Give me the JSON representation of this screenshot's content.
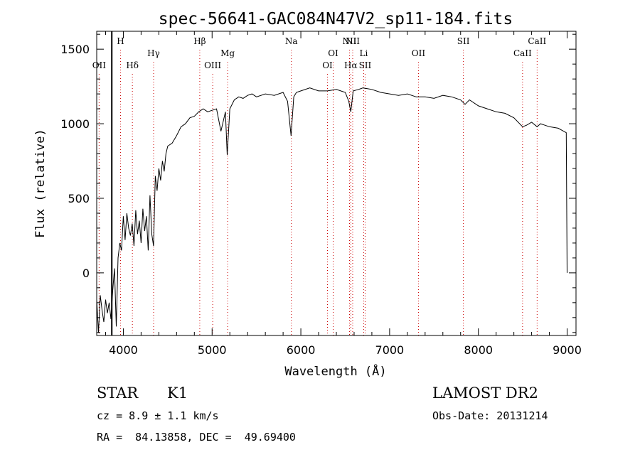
{
  "chart_data": {
    "type": "line",
    "title": "spec-56641-GAC084N47V2_sp11-184.fits",
    "xlabel": "Wavelength (Å)",
    "ylabel": "Flux (relative)",
    "xlim": [
      3700,
      9100
    ],
    "ylim": [
      -420,
      1620
    ],
    "x_ticks": [
      4000,
      5000,
      6000,
      7000,
      8000,
      9000
    ],
    "y_ticks": [
      0,
      500,
      1000,
      1500
    ],
    "grid": false,
    "series": [
      {
        "x": [
          3700,
          3720,
          3740,
          3760,
          3780,
          3800,
          3820,
          3840,
          3860,
          3880,
          3900,
          3920,
          3940,
          3960,
          3980,
          4000,
          4020,
          4040,
          4060,
          4080,
          4100,
          4120,
          4140,
          4160,
          4180,
          4200,
          4220,
          4240,
          4260,
          4280,
          4300,
          4320,
          4340,
          4360,
          4380,
          4400,
          4420,
          4440,
          4460,
          4480,
          4500,
          4550,
          4600,
          4650,
          4700,
          4750,
          4800,
          4850,
          4900,
          4950,
          5000,
          5050,
          5100,
          5150,
          5170,
          5200,
          5250,
          5300,
          5350,
          5400,
          5450,
          5500,
          5600,
          5700,
          5800,
          5850,
          5890,
          5920,
          5950,
          6000,
          6100,
          6200,
          6300,
          6400,
          6500,
          6540,
          6563,
          6590,
          6650,
          6700,
          6800,
          6900,
          7000,
          7100,
          7200,
          7300,
          7400,
          7500,
          7600,
          7700,
          7800,
          7850,
          7900,
          8000,
          8100,
          8200,
          8300,
          8400,
          8498,
          8542,
          8600,
          8662,
          8700,
          8800,
          8900,
          8960,
          8990,
          9000
        ],
        "y": [
          -180,
          -400,
          -150,
          -250,
          -330,
          -180,
          -270,
          -200,
          -310,
          -120,
          30,
          -360,
          100,
          200,
          150,
          380,
          220,
          400,
          300,
          250,
          330,
          180,
          420,
          260,
          350,
          200,
          430,
          280,
          380,
          150,
          520,
          260,
          180,
          650,
          550,
          700,
          620,
          750,
          680,
          800,
          850,
          870,
          920,
          980,
          1000,
          1040,
          1050,
          1080,
          1100,
          1080,
          1090,
          1100,
          950,
          1080,
          790,
          1100,
          1160,
          1180,
          1170,
          1190,
          1200,
          1180,
          1200,
          1190,
          1210,
          1150,
          920,
          1180,
          1210,
          1220,
          1240,
          1220,
          1220,
          1230,
          1210,
          1150,
          1080,
          1220,
          1230,
          1240,
          1230,
          1210,
          1200,
          1190,
          1200,
          1180,
          1180,
          1170,
          1190,
          1180,
          1160,
          1130,
          1160,
          1120,
          1100,
          1080,
          1070,
          1040,
          980,
          990,
          1010,
          980,
          1000,
          980,
          970,
          950,
          940,
          0
        ]
      }
    ],
    "spectral_lines": [
      {
        "label": "OII",
        "x": 3727,
        "row": 3
      },
      {
        "label": "H",
        "x": 3968,
        "row": 0
      },
      {
        "label": "Hδ",
        "x": 4102,
        "row": 3
      },
      {
        "label": "Hγ",
        "x": 4341,
        "row": 1
      },
      {
        "label": "Hβ",
        "x": 4861,
        "row": 0
      },
      {
        "label": "OIII",
        "x": 5007,
        "row": 3
      },
      {
        "label": "Mg",
        "x": 5175,
        "row": 1
      },
      {
        "label": "Na",
        "x": 5893,
        "row": 0
      },
      {
        "label": "OI",
        "x": 6300,
        "row": 3
      },
      {
        "label": "OI",
        "x": 6364,
        "row": 1
      },
      {
        "label": "NII",
        "x": 6548,
        "row": 0
      },
      {
        "label": "Hα",
        "x": 6563,
        "row": 3
      },
      {
        "label": "NII",
        "x": 6584,
        "row": 0
      },
      {
        "label": "Li",
        "x": 6708,
        "row": 1
      },
      {
        "label": "SII",
        "x": 6724,
        "row": 3
      },
      {
        "label": "OII",
        "x": 7325,
        "row": 1
      },
      {
        "label": "SII",
        "x": 7831,
        "row": 0
      },
      {
        "label": "CaII",
        "x": 8498,
        "row": 1
      },
      {
        "label": "CaII",
        "x": 8662,
        "row": 0
      }
    ],
    "marker_line": {
      "x": 3870
    }
  },
  "info": {
    "class_label": "STAR",
    "subclass": "K1",
    "survey": "LAMOST DR2",
    "redshift": "cz = 8.9 ± 1.1 km/s",
    "obs_date": "Obs-Date: 20131214",
    "coords": "RA =  84.13858, DEC =  49.69400"
  },
  "colors": {
    "axes": "#000000",
    "spectrum": "#000000",
    "line_marker": "#cc0000"
  }
}
